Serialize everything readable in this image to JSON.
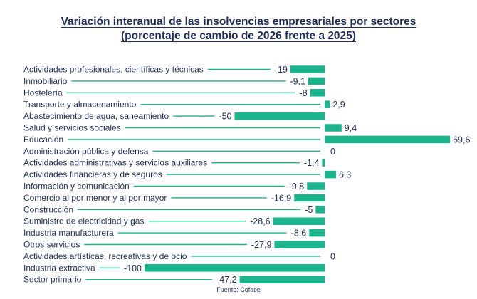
{
  "chart_data": {
    "type": "bar",
    "orientation": "horizontal",
    "title": "Variación interanual de las insolvencias empresariales por sectores",
    "subtitle": "(porcentaje de cambio de 2026 frente a 2025)",
    "source": "Fuente: Coface",
    "xlim": [
      -100,
      69.6
    ],
    "grid": false,
    "legend": "none",
    "bar_color": "#1bb48c",
    "text_color": "#1f2d5a",
    "categories": [
      "Actividades profesionales, científicas y técnicas",
      "Inmobiliario",
      "Hostelería",
      "Transporte y almacenamiento",
      "Abastecimiento de agua, saneamiento",
      "Salud y servicios sociales",
      "Educación",
      "Administración pública y defensa",
      "Actividades administrativas y servicios auxiliares",
      "Actividades financieras y de seguros",
      "Información y comunicación",
      "Comercio al por menor y al por mayor",
      "Construcción",
      "Suministro de electricidad y gas",
      "Industria manufacturera",
      "Otros servicios",
      "Actividades artísticas, recreativas y de ocio",
      "Industria extractiva",
      "Sector primario"
    ],
    "values": [
      -19,
      -9.1,
      -8,
      2.9,
      -50,
      9.4,
      69.6,
      0,
      -1.4,
      6.3,
      -9.8,
      -16.9,
      -5,
      -28.6,
      -8.6,
      -27.9,
      0,
      -100,
      -47.2
    ],
    "value_labels": [
      "-19",
      "-9,1",
      "-8",
      "2,9",
      "-50",
      "9,4",
      "69,6",
      "0",
      "-1,4",
      "6,3",
      "-9,8",
      "-16,9",
      "-5",
      "-28,6",
      "-8,6",
      "-27,9",
      "0",
      "-100",
      "-47,2"
    ]
  }
}
